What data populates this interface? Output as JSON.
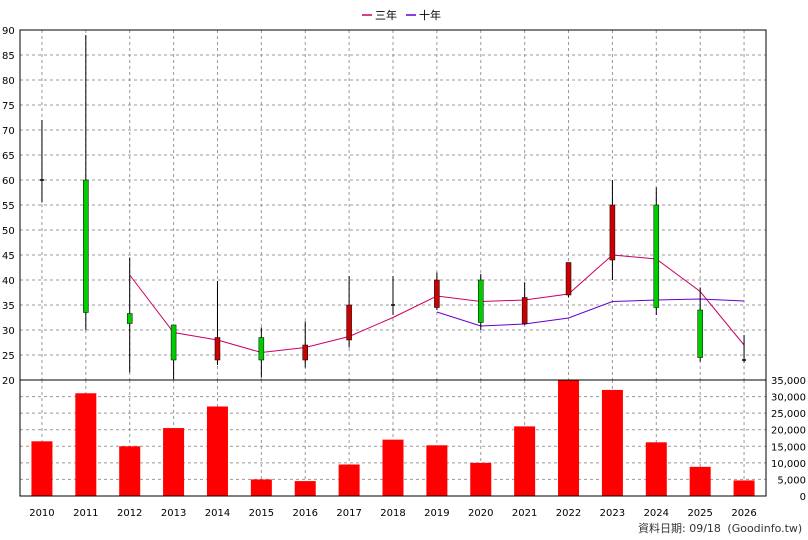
{
  "legend": {
    "ma3_label": "三年",
    "ma10_label": "十年"
  },
  "footer": {
    "prefix": "資料日期: 09/18",
    "source": "(Goodinfo.tw)"
  },
  "colors": {
    "up": "#cc0000",
    "down": "#00cc00",
    "ma3": "#cc0066",
    "ma10": "#6600cc",
    "volume": "#ff0000",
    "grid": "#999999"
  },
  "chart_data": [
    {
      "type": "candlestick",
      "xlabel": "",
      "ylabel": "",
      "ylim": [
        20,
        90
      ],
      "y_ticks": [
        20,
        25,
        30,
        35,
        40,
        45,
        50,
        55,
        60,
        65,
        70,
        75,
        80,
        85,
        90
      ],
      "categories": [
        "2010",
        "2011",
        "2012",
        "2013",
        "2014",
        "2015",
        "2016",
        "2017",
        "2018",
        "2019",
        "2020",
        "2021",
        "2022",
        "2023",
        "2024",
        "2025",
        "2026"
      ],
      "candles": [
        {
          "year": "2010",
          "open": 60,
          "close": 60,
          "high": 72,
          "low": 55.5
        },
        {
          "year": "2011",
          "open": 60,
          "close": 33.5,
          "high": 89,
          "low": 30
        },
        {
          "year": "2012",
          "open": 33.3,
          "close": 31.3,
          "high": 44.5,
          "low": 21.5
        },
        {
          "year": "2013",
          "open": 31,
          "close": 24,
          "high": 31,
          "low": 20.2
        },
        {
          "year": "2014",
          "open": 24,
          "close": 28.5,
          "high": 39.8,
          "low": 23
        },
        {
          "year": "2015",
          "open": 28.5,
          "close": 24,
          "high": 30.5,
          "low": 20.5
        },
        {
          "year": "2016",
          "open": 24,
          "close": 27,
          "high": 31.7,
          "low": 22.5
        },
        {
          "year": "2017",
          "open": 28,
          "close": 35,
          "high": 40.8,
          "low": 26.5
        },
        {
          "year": "2018",
          "open": 35,
          "close": 35,
          "high": 40.8,
          "low": 33
        },
        {
          "year": "2019",
          "open": 34.5,
          "close": 40,
          "high": 41.5,
          "low": 34
        },
        {
          "year": "2020",
          "open": 40,
          "close": 31.5,
          "high": 41.2,
          "low": 30
        },
        {
          "year": "2021",
          "open": 31.3,
          "close": 36.5,
          "high": 39.5,
          "low": 31
        },
        {
          "year": "2022",
          "open": 37,
          "close": 43.5,
          "high": 43.5,
          "low": 36.5
        },
        {
          "year": "2023",
          "open": 44,
          "close": 55,
          "high": 60,
          "low": 40
        },
        {
          "year": "2024",
          "open": 55,
          "close": 34.5,
          "high": 58.5,
          "low": 33
        },
        {
          "year": "2025",
          "open": 34,
          "close": 24.5,
          "high": 38.5,
          "low": 23.7
        },
        {
          "year": "2026",
          "open": 24,
          "close": 24,
          "high": 29,
          "low": 23.5
        }
      ],
      "series": [
        {
          "name": "三年",
          "color": "#cc0066",
          "x": [
            "2012",
            "2013",
            "2014",
            "2015",
            "2016",
            "2017",
            "2018",
            "2019",
            "2020",
            "2021",
            "2022",
            "2023",
            "2024",
            "2025",
            "2026"
          ],
          "values": [
            41,
            29.5,
            28,
            25.5,
            26.5,
            28.7,
            32.5,
            36.8,
            35.7,
            36,
            37.2,
            45,
            44.2,
            37.7,
            27
          ]
        },
        {
          "name": "十年",
          "color": "#6600cc",
          "x": [
            "2019",
            "2020",
            "2021",
            "2022",
            "2023",
            "2024",
            "2025",
            "2026"
          ],
          "values": [
            33.6,
            30.8,
            31.2,
            32.4,
            35.7,
            36,
            36.2,
            35.8
          ]
        }
      ]
    },
    {
      "type": "bar",
      "xlabel": "",
      "ylabel": "",
      "ylim": [
        0,
        35000
      ],
      "y_ticks": [
        0,
        5000,
        10000,
        15000,
        20000,
        25000,
        30000,
        35000
      ],
      "y_tick_labels": [
        "0",
        "5,000",
        "10,000",
        "15,000",
        "20,000",
        "25,000",
        "30,000",
        "35,000"
      ],
      "categories": [
        "2010",
        "2011",
        "2012",
        "2013",
        "2014",
        "2015",
        "2016",
        "2017",
        "2018",
        "2019",
        "2020",
        "2021",
        "2022",
        "2023",
        "2024",
        "2025",
        "2026"
      ],
      "values": [
        16500,
        31000,
        15000,
        20500,
        27000,
        5000,
        4500,
        9500,
        17000,
        15300,
        10000,
        21000,
        35500,
        32000,
        16200,
        8800,
        4700
      ]
    }
  ]
}
